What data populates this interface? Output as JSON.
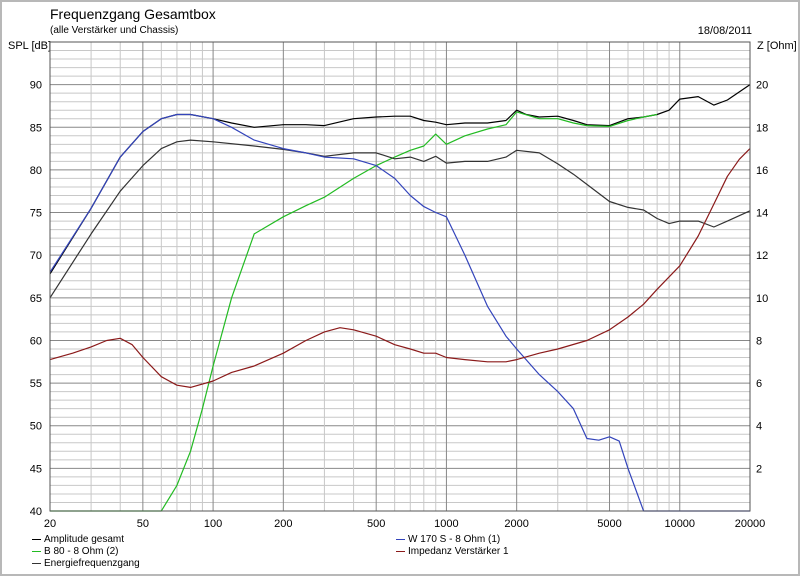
{
  "header": {
    "title": "Frequenzgang Gesamtbox",
    "subtitle": "(alle Verstärker und Chassis)",
    "date": "18/08/2011",
    "y_left_label": "SPL [dB]",
    "y_right_label": "Z [Ohm]"
  },
  "chart_data": {
    "type": "line",
    "title": "Frequenzgang Gesamtbox",
    "subtitle": "(alle Verstärker und Chassis)",
    "x_scale": "log",
    "xlim": [
      20,
      20000
    ],
    "x_ticks": [
      20,
      50,
      100,
      200,
      500,
      1000,
      2000,
      5000,
      10000,
      20000
    ],
    "ylabel": "SPL [dB]",
    "ylim": [
      40,
      95
    ],
    "y_ticks": [
      40,
      45,
      50,
      55,
      60,
      65,
      70,
      75,
      80,
      85,
      90
    ],
    "y2label": "Z [Ohm]",
    "y2lim": [
      0,
      22
    ],
    "y2_ticks": [
      2,
      4,
      6,
      8,
      10,
      12,
      14,
      16,
      18,
      20
    ],
    "grid": true,
    "legend_position": "bottom",
    "colors": {
      "amplitude": "#000000",
      "b80": "#22bb22",
      "energie": "#333333",
      "w170": "#3344bb",
      "impedanz": "#8b1a1a"
    },
    "series": [
      {
        "name": "Amplitude gesamt",
        "axis": "left",
        "color": "#000000",
        "points": [
          [
            20,
            67.8
          ],
          [
            30,
            75.5
          ],
          [
            40,
            81.5
          ],
          [
            50,
            84.5
          ],
          [
            60,
            86
          ],
          [
            70,
            86.5
          ],
          [
            80,
            86.5
          ],
          [
            100,
            86
          ],
          [
            120,
            85.5
          ],
          [
            150,
            85
          ],
          [
            200,
            85.3
          ],
          [
            250,
            85.3
          ],
          [
            300,
            85.2
          ],
          [
            400,
            86
          ],
          [
            500,
            86.2
          ],
          [
            600,
            86.3
          ],
          [
            700,
            86.3
          ],
          [
            800,
            85.8
          ],
          [
            900,
            85.6
          ],
          [
            1000,
            85.3
          ],
          [
            1200,
            85.5
          ],
          [
            1500,
            85.5
          ],
          [
            1800,
            85.8
          ],
          [
            2000,
            87
          ],
          [
            2200,
            86.5
          ],
          [
            2500,
            86.2
          ],
          [
            3000,
            86.3
          ],
          [
            3500,
            85.8
          ],
          [
            4000,
            85.3
          ],
          [
            5000,
            85.2
          ],
          [
            6000,
            86
          ],
          [
            7000,
            86.2
          ],
          [
            8000,
            86.5
          ],
          [
            9000,
            87
          ],
          [
            10000,
            88.3
          ],
          [
            12000,
            88.6
          ],
          [
            14000,
            87.6
          ],
          [
            16000,
            88.2
          ],
          [
            20000,
            90
          ]
        ]
      },
      {
        "name": "B 80 - 8 Ohm (2)",
        "axis": "left",
        "color": "#22bb22",
        "points": [
          [
            20,
            40
          ],
          [
            60,
            40
          ],
          [
            70,
            43
          ],
          [
            80,
            47
          ],
          [
            90,
            52
          ],
          [
            100,
            57
          ],
          [
            120,
            65
          ],
          [
            150,
            72.5
          ],
          [
            200,
            74.5
          ],
          [
            250,
            75.8
          ],
          [
            300,
            76.8
          ],
          [
            400,
            79
          ],
          [
            500,
            80.5
          ],
          [
            600,
            81.5
          ],
          [
            700,
            82.3
          ],
          [
            800,
            82.8
          ],
          [
            900,
            84.2
          ],
          [
            1000,
            83
          ],
          [
            1200,
            84
          ],
          [
            1500,
            84.8
          ],
          [
            1800,
            85.3
          ],
          [
            2000,
            86.8
          ],
          [
            2500,
            86
          ],
          [
            3000,
            86
          ],
          [
            3500,
            85.5
          ],
          [
            4000,
            85.2
          ],
          [
            5000,
            85.1
          ],
          [
            6000,
            85.8
          ],
          [
            7000,
            86.2
          ],
          [
            8000,
            86.5
          ]
        ]
      },
      {
        "name": "Energiefrequenzgang",
        "axis": "left",
        "color": "#333333",
        "points": [
          [
            20,
            65
          ],
          [
            30,
            72.5
          ],
          [
            40,
            77.5
          ],
          [
            50,
            80.5
          ],
          [
            60,
            82.5
          ],
          [
            70,
            83.3
          ],
          [
            80,
            83.5
          ],
          [
            100,
            83.3
          ],
          [
            150,
            82.8
          ],
          [
            200,
            82.4
          ],
          [
            250,
            82
          ],
          [
            300,
            81.6
          ],
          [
            400,
            82
          ],
          [
            500,
            82
          ],
          [
            600,
            81.3
          ],
          [
            700,
            81.5
          ],
          [
            800,
            81
          ],
          [
            900,
            81.6
          ],
          [
            1000,
            80.8
          ],
          [
            1200,
            81
          ],
          [
            1500,
            81
          ],
          [
            1800,
            81.5
          ],
          [
            2000,
            82.3
          ],
          [
            2500,
            82
          ],
          [
            3000,
            80.7
          ],
          [
            3500,
            79.5
          ],
          [
            4000,
            78.3
          ],
          [
            5000,
            76.3
          ],
          [
            6000,
            75.6
          ],
          [
            7000,
            75.3
          ],
          [
            8000,
            74.3
          ],
          [
            9000,
            73.7
          ],
          [
            10000,
            74
          ],
          [
            12000,
            74
          ],
          [
            14000,
            73.3
          ],
          [
            16000,
            74
          ],
          [
            20000,
            75.2
          ]
        ]
      },
      {
        "name": "W 170 S - 8 Ohm (1)",
        "axis": "left",
        "color": "#3344bb",
        "points": [
          [
            20,
            68
          ],
          [
            30,
            75.5
          ],
          [
            40,
            81.5
          ],
          [
            50,
            84.5
          ],
          [
            60,
            86
          ],
          [
            70,
            86.5
          ],
          [
            80,
            86.5
          ],
          [
            100,
            86
          ],
          [
            120,
            85
          ],
          [
            150,
            83.5
          ],
          [
            200,
            82.5
          ],
          [
            250,
            82
          ],
          [
            300,
            81.5
          ],
          [
            400,
            81.3
          ],
          [
            500,
            80.5
          ],
          [
            600,
            79
          ],
          [
            700,
            77
          ],
          [
            800,
            75.7
          ],
          [
            900,
            75
          ],
          [
            1000,
            74.5
          ],
          [
            1200,
            70
          ],
          [
            1500,
            64
          ],
          [
            1800,
            60.5
          ],
          [
            2000,
            59
          ],
          [
            2500,
            56
          ],
          [
            3000,
            54
          ],
          [
            3500,
            52
          ],
          [
            4000,
            48.5
          ],
          [
            4500,
            48.3
          ],
          [
            5000,
            48.7
          ],
          [
            5500,
            48.2
          ],
          [
            6000,
            45
          ],
          [
            7000,
            40
          ],
          [
            20000,
            40
          ]
        ]
      },
      {
        "name": "Impedanz Verstärker 1",
        "axis": "right",
        "color": "#8b1a1a",
        "points": [
          [
            20,
            7.1
          ],
          [
            25,
            7.4
          ],
          [
            30,
            7.7
          ],
          [
            35,
            8.0
          ],
          [
            40,
            8.1
          ],
          [
            45,
            7.8
          ],
          [
            50,
            7.2
          ],
          [
            60,
            6.3
          ],
          [
            70,
            5.9
          ],
          [
            80,
            5.8
          ],
          [
            100,
            6.1
          ],
          [
            120,
            6.5
          ],
          [
            150,
            6.8
          ],
          [
            200,
            7.4
          ],
          [
            250,
            8.0
          ],
          [
            300,
            8.4
          ],
          [
            350,
            8.6
          ],
          [
            400,
            8.5
          ],
          [
            500,
            8.2
          ],
          [
            600,
            7.8
          ],
          [
            700,
            7.6
          ],
          [
            800,
            7.4
          ],
          [
            900,
            7.4
          ],
          [
            1000,
            7.2
          ],
          [
            1200,
            7.1
          ],
          [
            1500,
            7.0
          ],
          [
            1800,
            7.0
          ],
          [
            2000,
            7.1
          ],
          [
            2500,
            7.4
          ],
          [
            3000,
            7.6
          ],
          [
            4000,
            8.0
          ],
          [
            5000,
            8.5
          ],
          [
            6000,
            9.1
          ],
          [
            7000,
            9.7
          ],
          [
            8000,
            10.4
          ],
          [
            10000,
            11.5
          ],
          [
            12000,
            12.9
          ],
          [
            14000,
            14.4
          ],
          [
            16000,
            15.7
          ],
          [
            18000,
            16.5
          ],
          [
            20000,
            17
          ]
        ]
      }
    ]
  }
}
